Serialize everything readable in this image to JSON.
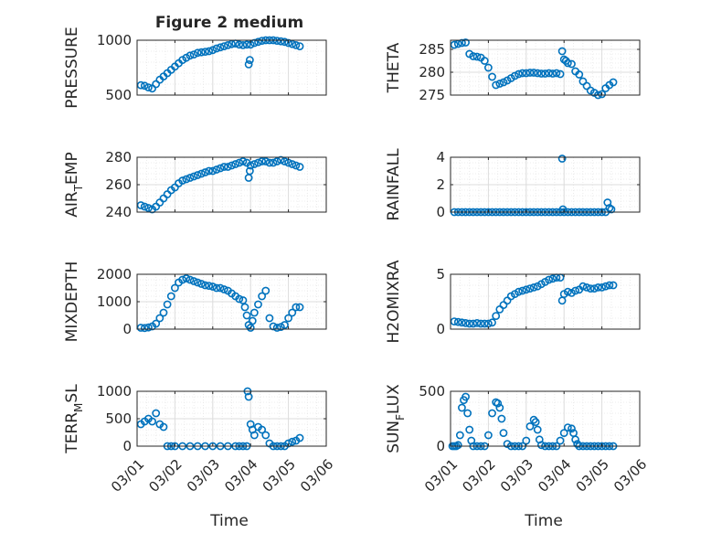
{
  "figure_title": "Figure 2 medium",
  "marker_color": "#0072BD",
  "x_label": "Time",
  "x_tick_labels": [
    "03/01",
    "03/02",
    "03/03",
    "03/04",
    "03/05",
    "03/06"
  ],
  "chart_data": [
    {
      "type": "scatter",
      "ylabel": "PRESSURE",
      "ylabel_sub": "",
      "ylabel_rest": "",
      "ylim": [
        500,
        1000
      ],
      "yticks": [
        500,
        1000
      ],
      "x": [
        0.1,
        0.2,
        0.3,
        0.4,
        0.5,
        0.6,
        0.7,
        0.8,
        0.9,
        1.0,
        1.1,
        1.2,
        1.3,
        1.4,
        1.5,
        1.6,
        1.7,
        1.8,
        1.9,
        2.0,
        2.1,
        2.2,
        2.3,
        2.4,
        2.5,
        2.6,
        2.7,
        2.8,
        2.9,
        2.95,
        2.98,
        3.0,
        3.1,
        3.2,
        3.3,
        3.4,
        3.5,
        3.6,
        3.7,
        3.8,
        3.9,
        4.0,
        4.1,
        4.2,
        4.3
      ],
      "y": [
        590,
        585,
        570,
        560,
        600,
        640,
        670,
        700,
        730,
        760,
        790,
        820,
        840,
        860,
        870,
        885,
        890,
        895,
        900,
        910,
        925,
        935,
        945,
        955,
        965,
        970,
        960,
        955,
        960,
        780,
        820,
        960,
        975,
        985,
        995,
        1000,
        1000,
        1000,
        995,
        990,
        985,
        975,
        965,
        955,
        945
      ]
    },
    {
      "type": "scatter",
      "ylabel": "THETA",
      "ylabel_sub": "",
      "ylabel_rest": "",
      "ylim": [
        275,
        287
      ],
      "yticks": [
        275,
        280,
        285
      ],
      "x": [
        0.1,
        0.2,
        0.3,
        0.4,
        0.5,
        0.6,
        0.7,
        0.8,
        0.9,
        1.0,
        1.1,
        1.2,
        1.3,
        1.4,
        1.5,
        1.6,
        1.7,
        1.8,
        1.9,
        2.0,
        2.1,
        2.2,
        2.3,
        2.4,
        2.5,
        2.6,
        2.7,
        2.8,
        2.9,
        2.95,
        3.0,
        3.05,
        3.1,
        3.2,
        3.3,
        3.4,
        3.5,
        3.6,
        3.7,
        3.8,
        3.9,
        4.0,
        4.1,
        4.2,
        4.3
      ],
      "y": [
        286,
        286.2,
        286.4,
        286.5,
        284,
        283.5,
        283.4,
        283.2,
        282.5,
        281,
        279,
        277.2,
        277.5,
        277.8,
        278.2,
        278.7,
        279.2,
        279.6,
        279.8,
        279.8,
        279.9,
        279.9,
        279.8,
        279.7,
        279.7,
        279.8,
        279.7,
        279.8,
        279.6,
        284.6,
        282.8,
        282.5,
        282,
        281.8,
        280.2,
        279.5,
        278,
        277,
        276,
        275.5,
        275,
        275.2,
        276.5,
        277.2,
        277.8
      ]
    },
    {
      "type": "scatter",
      "ylabel": "AIR",
      "ylabel_sub": "T",
      "ylabel_rest": "EMP",
      "ylim": [
        240,
        280
      ],
      "yticks": [
        240,
        260,
        280
      ],
      "x": [
        0.1,
        0.2,
        0.3,
        0.4,
        0.5,
        0.6,
        0.7,
        0.8,
        0.9,
        1.0,
        1.1,
        1.2,
        1.3,
        1.4,
        1.5,
        1.6,
        1.7,
        1.8,
        1.9,
        2.0,
        2.1,
        2.2,
        2.3,
        2.4,
        2.5,
        2.6,
        2.7,
        2.8,
        2.9,
        2.95,
        2.98,
        3.0,
        3.1,
        3.2,
        3.3,
        3.4,
        3.5,
        3.6,
        3.7,
        3.8,
        3.9,
        4.0,
        4.1,
        4.2,
        4.3
      ],
      "y": [
        245,
        244,
        243,
        242,
        244,
        247,
        250,
        253,
        256,
        258,
        261,
        263,
        264,
        265,
        266,
        267,
        268,
        269,
        270,
        270,
        271,
        272,
        273,
        273,
        274,
        275,
        276,
        277,
        276,
        265,
        270,
        274,
        275,
        276,
        277,
        277,
        276,
        276,
        277,
        278,
        277,
        276,
        275,
        274,
        273
      ]
    },
    {
      "type": "scatter",
      "ylabel": "RAINFALL",
      "ylabel_sub": "",
      "ylabel_rest": "",
      "ylim": [
        0,
        4
      ],
      "yticks": [
        0,
        2,
        4
      ],
      "x": [
        0.1,
        0.2,
        0.3,
        0.4,
        0.5,
        0.6,
        0.7,
        0.8,
        0.9,
        1.0,
        1.1,
        1.2,
        1.3,
        1.4,
        1.5,
        1.6,
        1.7,
        1.8,
        1.9,
        2.0,
        2.1,
        2.2,
        2.3,
        2.4,
        2.5,
        2.6,
        2.7,
        2.8,
        2.9,
        2.95,
        2.97,
        3.0,
        3.1,
        3.2,
        3.3,
        3.4,
        3.5,
        3.6,
        3.7,
        3.8,
        3.9,
        4.0,
        4.1,
        4.15,
        4.2,
        4.25
      ],
      "y": [
        0,
        0,
        0,
        0,
        0,
        0,
        0,
        0,
        0,
        0,
        0,
        0,
        0,
        0,
        0,
        0,
        0,
        0,
        0,
        0,
        0,
        0,
        0,
        0,
        0,
        0,
        0,
        0,
        0,
        3.9,
        0.2,
        0,
        0,
        0,
        0,
        0,
        0,
        0,
        0,
        0,
        0,
        0,
        0,
        0.7,
        0.3,
        0.2
      ]
    },
    {
      "type": "scatter",
      "ylabel": "MIXDEPTH",
      "ylabel_sub": "",
      "ylabel_rest": "",
      "ylim": [
        0,
        2000
      ],
      "yticks": [
        0,
        1000,
        2000
      ],
      "x": [
        0.1,
        0.2,
        0.3,
        0.4,
        0.5,
        0.6,
        0.7,
        0.8,
        0.9,
        1.0,
        1.1,
        1.2,
        1.3,
        1.4,
        1.5,
        1.6,
        1.7,
        1.8,
        1.9,
        2.0,
        2.1,
        2.2,
        2.3,
        2.4,
        2.5,
        2.6,
        2.7,
        2.8,
        2.85,
        2.9,
        2.95,
        3.0,
        3.05,
        3.1,
        3.2,
        3.3,
        3.4,
        3.5,
        3.6,
        3.7,
        3.8,
        3.9,
        4.0,
        4.1,
        4.2,
        4.3
      ],
      "y": [
        50,
        40,
        60,
        100,
        200,
        400,
        600,
        900,
        1200,
        1500,
        1700,
        1800,
        1850,
        1800,
        1750,
        1700,
        1650,
        1600,
        1580,
        1550,
        1500,
        1500,
        1450,
        1400,
        1300,
        1200,
        1100,
        1050,
        800,
        500,
        150,
        50,
        300,
        600,
        900,
        1200,
        1400,
        400,
        100,
        50,
        80,
        150,
        400,
        600,
        800,
        800
      ]
    },
    {
      "type": "scatter",
      "ylabel": "H2OMIXRA",
      "ylabel_sub": "",
      "ylabel_rest": "",
      "ylim": [
        0,
        5
      ],
      "yticks": [
        0,
        5
      ],
      "x": [
        0.1,
        0.2,
        0.3,
        0.4,
        0.5,
        0.6,
        0.7,
        0.8,
        0.9,
        1.0,
        1.1,
        1.2,
        1.3,
        1.4,
        1.5,
        1.6,
        1.7,
        1.8,
        1.9,
        2.0,
        2.1,
        2.2,
        2.3,
        2.4,
        2.5,
        2.6,
        2.7,
        2.8,
        2.9,
        2.95,
        3.0,
        3.1,
        3.2,
        3.3,
        3.4,
        3.5,
        3.6,
        3.7,
        3.8,
        3.9,
        4.0,
        4.1,
        4.2,
        4.3
      ],
      "y": [
        0.7,
        0.65,
        0.6,
        0.55,
        0.5,
        0.5,
        0.55,
        0.5,
        0.5,
        0.5,
        0.6,
        1.2,
        1.8,
        2.2,
        2.6,
        3.0,
        3.2,
        3.4,
        3.5,
        3.6,
        3.7,
        3.8,
        3.9,
        4.1,
        4.3,
        4.5,
        4.6,
        4.7,
        4.7,
        2.6,
        3.2,
        3.4,
        3.3,
        3.5,
        3.6,
        3.9,
        3.8,
        3.7,
        3.7,
        3.8,
        3.8,
        3.9,
        4.0,
        4.0
      ]
    },
    {
      "type": "scatter",
      "ylabel": "TERR",
      "ylabel_sub": "M",
      "ylabel_rest": "SL",
      "ylim": [
        0,
        1000
      ],
      "yticks": [
        0,
        500,
        1000
      ],
      "x": [
        0.1,
        0.2,
        0.3,
        0.4,
        0.5,
        0.6,
        0.7,
        0.8,
        0.9,
        1.0,
        1.2,
        1.4,
        1.6,
        1.8,
        2.0,
        2.2,
        2.4,
        2.6,
        2.7,
        2.8,
        2.9,
        2.92,
        2.95,
        3.0,
        3.05,
        3.1,
        3.2,
        3.3,
        3.4,
        3.5,
        3.6,
        3.7,
        3.8,
        3.9,
        4.0,
        4.1,
        4.2,
        4.3
      ],
      "y": [
        400,
        450,
        500,
        450,
        600,
        400,
        350,
        0,
        0,
        0,
        0,
        0,
        0,
        0,
        0,
        0,
        0,
        0,
        0,
        0,
        0,
        1000,
        900,
        400,
        300,
        200,
        350,
        300,
        200,
        50,
        0,
        0,
        0,
        0,
        50,
        80,
        100,
        150
      ]
    },
    {
      "type": "scatter",
      "ylabel": "SUN",
      "ylabel_sub": "F",
      "ylabel_rest": "LUX",
      "ylim": [
        0,
        500
      ],
      "yticks": [
        0,
        500
      ],
      "x": [
        0.05,
        0.1,
        0.15,
        0.2,
        0.25,
        0.3,
        0.35,
        0.4,
        0.45,
        0.5,
        0.55,
        0.6,
        0.7,
        0.8,
        0.9,
        1.0,
        1.1,
        1.2,
        1.25,
        1.3,
        1.35,
        1.4,
        1.5,
        1.6,
        1.7,
        1.8,
        1.9,
        2.0,
        2.1,
        2.2,
        2.25,
        2.3,
        2.35,
        2.4,
        2.5,
        2.6,
        2.7,
        2.8,
        2.9,
        3.0,
        3.1,
        3.2,
        3.25,
        3.3,
        3.35,
        3.4,
        3.5,
        3.6,
        3.7,
        3.8,
        3.9,
        4.0,
        4.1,
        4.2,
        4.3
      ],
      "y": [
        0,
        0,
        0,
        10,
        100,
        350,
        420,
        450,
        300,
        150,
        50,
        0,
        0,
        0,
        0,
        100,
        300,
        400,
        390,
        350,
        250,
        120,
        20,
        0,
        0,
        0,
        0,
        50,
        180,
        240,
        220,
        150,
        60,
        10,
        0,
        0,
        0,
        0,
        50,
        120,
        170,
        160,
        120,
        60,
        20,
        0,
        0,
        0,
        0,
        0,
        0,
        0,
        0,
        0,
        0
      ]
    }
  ]
}
